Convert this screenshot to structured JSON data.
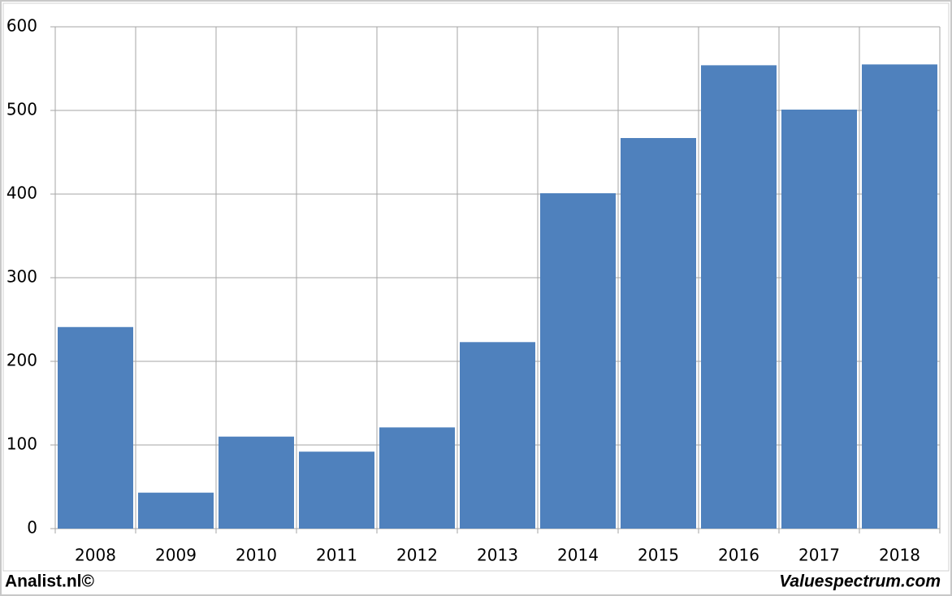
{
  "chart_data": {
    "type": "bar",
    "categories": [
      "2008",
      "2009",
      "2010",
      "2011",
      "2012",
      "2013",
      "2014",
      "2015",
      "2016",
      "2017",
      "2018"
    ],
    "values": [
      241,
      43,
      110,
      92,
      121,
      223,
      401,
      467,
      554,
      501,
      555
    ],
    "color": "#4f81bd",
    "ylim": [
      0,
      600
    ],
    "yticks": [
      0,
      100,
      200,
      300,
      400,
      500,
      600
    ],
    "grid": true
  },
  "footer": {
    "left": "Analist.nl©",
    "right": "Valuespectrum.com"
  }
}
